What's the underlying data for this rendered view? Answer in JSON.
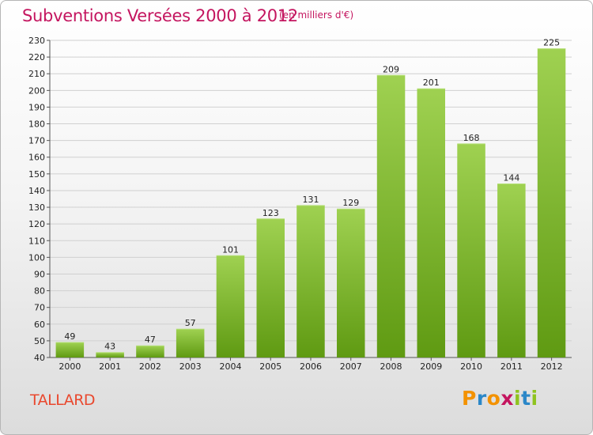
{
  "header": {
    "title": "Subventions Versées 2000 à 2012",
    "subtitle": "(en milliers d'€)"
  },
  "footer": {
    "commune": "TALLARD",
    "logo_text": "Proxiti",
    "logo_letters": [
      {
        "ch": "P",
        "color": "#f39200"
      },
      {
        "ch": "r",
        "color": "#2b87c8"
      },
      {
        "ch": "o",
        "color": "#f39200"
      },
      {
        "ch": "x",
        "color": "#c4155f"
      },
      {
        "ch": "i",
        "color": "#8fc31f"
      },
      {
        "ch": "t",
        "color": "#2b87c8"
      },
      {
        "ch": "i",
        "color": "#8fc31f"
      }
    ]
  },
  "colors": {
    "title": "#c4155f",
    "bar_top": "#9fd151",
    "bar_bottom": "#5f9a12",
    "grid": "#d0d0d0"
  },
  "chart_data": {
    "type": "bar",
    "title": "Subventions Versées 2000 à 2012",
    "subtitle": "(en milliers d'€)",
    "xlabel": "",
    "ylabel": "",
    "categories": [
      "2000",
      "2001",
      "2002",
      "2003",
      "2004",
      "2005",
      "2006",
      "2007",
      "2008",
      "2009",
      "2010",
      "2011",
      "2012"
    ],
    "values": [
      49,
      43,
      47,
      57,
      101,
      123,
      131,
      129,
      209,
      201,
      168,
      144,
      225
    ],
    "ylim": [
      40,
      230
    ],
    "ytick_step": 10,
    "grid": true,
    "legend": "none"
  }
}
